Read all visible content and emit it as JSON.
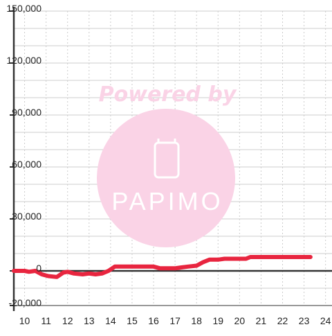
{
  "watermark": {
    "powered_by": "Powered by",
    "brand": "PAPIMO",
    "color": "#fad3e6"
  },
  "colors": {
    "line": "#e8253f",
    "grid": "#cccccc",
    "axis": "#333333",
    "tick_text": "#222222"
  },
  "chart_data": {
    "type": "line",
    "title": "",
    "xlabel": "",
    "ylabel": "",
    "xlim": [
      9.5,
      24.3
    ],
    "ylim": [
      -20000,
      150000
    ],
    "grid": true,
    "legend": "none",
    "x_ticks": [
      10,
      11,
      12,
      13,
      14,
      15,
      16,
      17,
      18,
      19,
      20,
      21,
      22,
      23,
      24
    ],
    "x_tick_labels": [
      "10",
      "11",
      "12",
      "13",
      "14",
      "15",
      "16",
      "17",
      "18",
      "19",
      "20",
      "21",
      "22",
      "23",
      "24"
    ],
    "y_ticks": [
      -20000,
      0,
      30000,
      60000,
      90000,
      120000,
      150000
    ],
    "y_tick_labels": [
      "-20,000",
      "0",
      "30,000",
      "60,000",
      "90,000",
      "120,000",
      "150,000"
    ],
    "series": [
      {
        "color": "#e8253f",
        "x": [
          9.5,
          10.0,
          10.2,
          10.5,
          10.8,
          11.1,
          11.5,
          11.8,
          12.0,
          12.3,
          12.7,
          13.0,
          13.3,
          13.6,
          13.9,
          14.2,
          14.6,
          15.0,
          15.5,
          16.0,
          16.3,
          16.6,
          17.0,
          17.3,
          17.6,
          18.0,
          18.3,
          18.6,
          19.0,
          19.3,
          19.6,
          20.0,
          20.3,
          20.5,
          21.0,
          21.5,
          22.0,
          22.5,
          23.0,
          23.3
        ],
        "y": [
          0,
          0,
          -500,
          0,
          -2000,
          -3000,
          -3500,
          -1000,
          -500,
          -1500,
          -2000,
          -1500,
          -2000,
          -1500,
          0,
          2500,
          2500,
          2500,
          2500,
          2500,
          1500,
          1500,
          1500,
          2000,
          2500,
          3000,
          5000,
          6500,
          6500,
          7000,
          7000,
          7000,
          7000,
          8000,
          8000,
          8000,
          8000,
          8000,
          8000,
          8000
        ]
      }
    ]
  }
}
